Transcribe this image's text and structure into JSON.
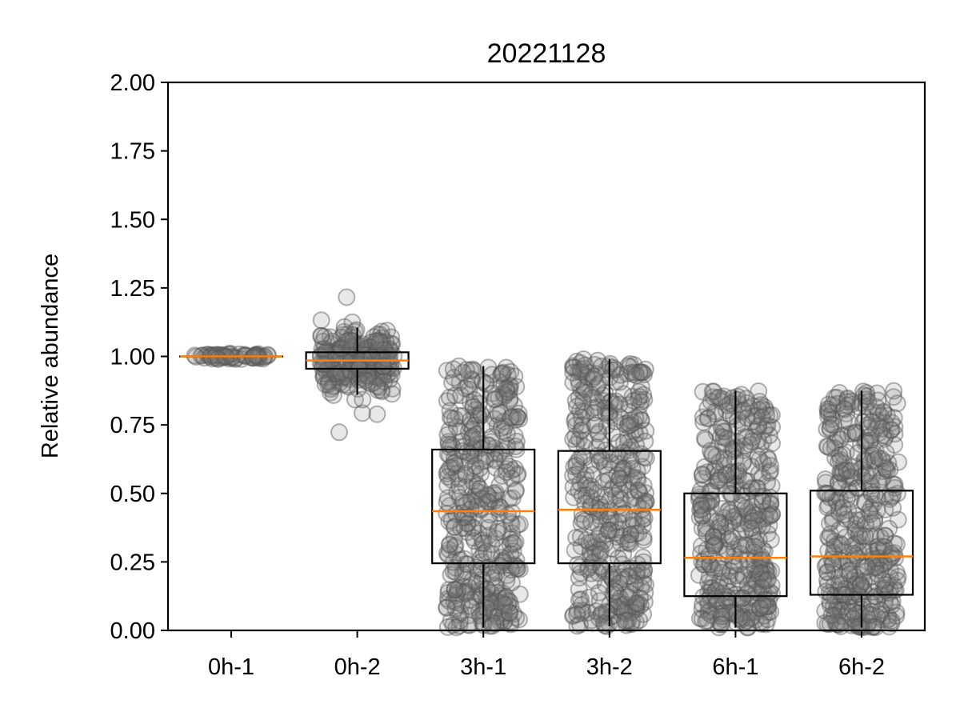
{
  "chart_data": {
    "type": "boxplot",
    "title": "20221128",
    "xlabel": "",
    "ylabel": "Relative abundance",
    "ylim": [
      0,
      2
    ],
    "yticks": [
      "0.00",
      "0.25",
      "0.50",
      "0.75",
      "1.00",
      "1.25",
      "1.50",
      "1.75",
      "2.00"
    ],
    "categories": [
      "0h-1",
      "0h-2",
      "3h-1",
      "3h-2",
      "6h-1",
      "6h-2"
    ],
    "grid": false,
    "boxes": [
      {
        "category": "0h-1",
        "whisker_low": 1.0,
        "q1": 1.0,
        "median": 1.0,
        "q3": 1.0,
        "whisker_high": 1.0,
        "points_min": 0.98,
        "points_max": 1.02
      },
      {
        "category": "0h-2",
        "whisker_low": 0.86,
        "q1": 0.955,
        "median": 0.985,
        "q3": 1.015,
        "whisker_high": 1.105,
        "points_min": 0.72,
        "points_max": 1.28
      },
      {
        "category": "3h-1",
        "whisker_low": 0.01,
        "q1": 0.245,
        "median": 0.435,
        "q3": 0.66,
        "whisker_high": 0.965,
        "points_min": 0.01,
        "points_max": 0.965
      },
      {
        "category": "3h-2",
        "whisker_low": 0.015,
        "q1": 0.245,
        "median": 0.44,
        "q3": 0.655,
        "whisker_high": 0.99,
        "points_min": 0.015,
        "points_max": 0.99
      },
      {
        "category": "6h-1",
        "whisker_low": 0.01,
        "q1": 0.125,
        "median": 0.265,
        "q3": 0.5,
        "whisker_high": 0.875,
        "points_min": 0.01,
        "points_max": 0.875
      },
      {
        "category": "6h-2",
        "whisker_low": 0.01,
        "q1": 0.13,
        "median": 0.27,
        "q3": 0.51,
        "whisker_high": 0.875,
        "points_min": 0.01,
        "points_max": 0.875
      }
    ],
    "colors": {
      "box": "#000000",
      "median": "#ff7f0e",
      "points": "#555555"
    }
  }
}
